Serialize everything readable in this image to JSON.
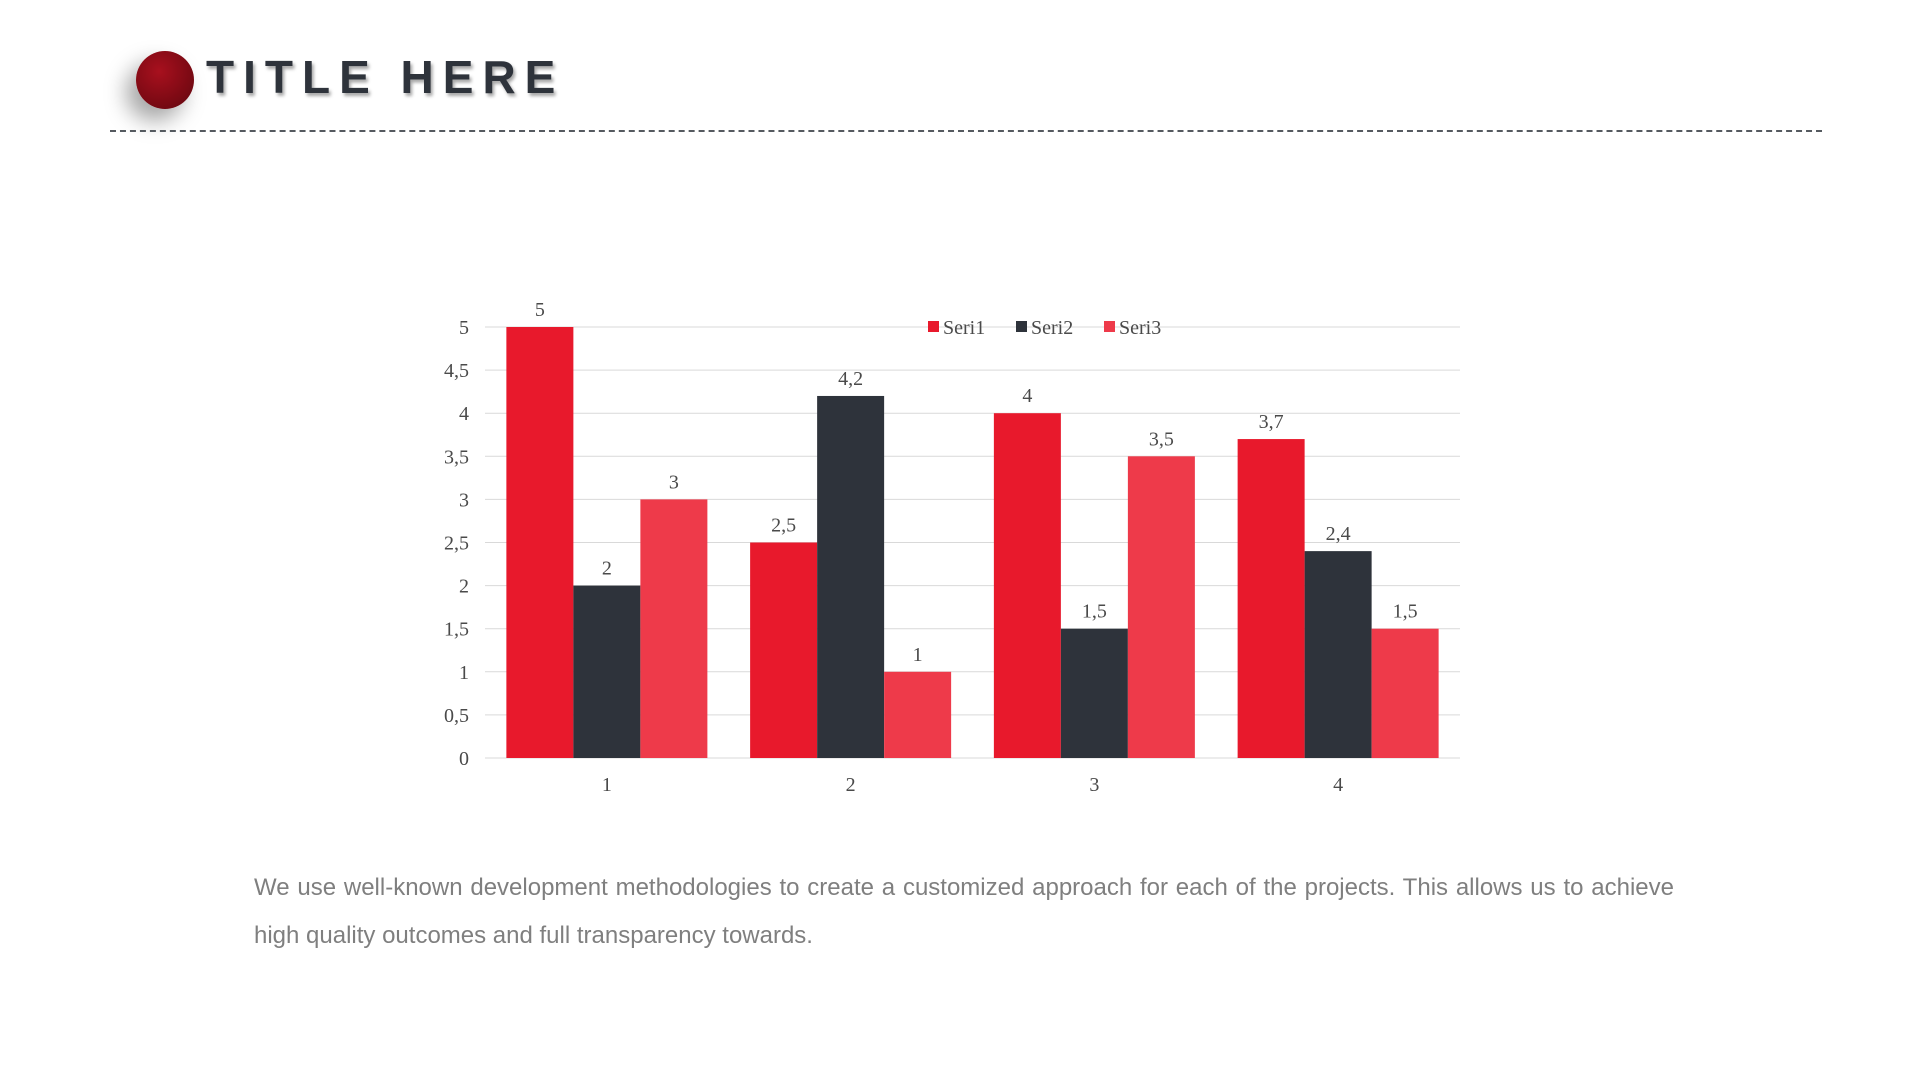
{
  "slide": {
    "title": "TITLE HERE",
    "body": "We use well-known development methodologies to create a customized approach for each of the projects. This allows us to achieve high quality outcomes and full transparency towards."
  },
  "colors": {
    "seri1": "#E8192C",
    "seri2": "#2E333B",
    "seri3": "#EE3A4A",
    "title_dot": "#7D0A14",
    "title_text": "#2E333B",
    "body_text": "#7F7F7F",
    "gridline": "#D9D9D9"
  },
  "chart_data": {
    "type": "bar",
    "categories": [
      "1",
      "2",
      "3",
      "4"
    ],
    "series": [
      {
        "name": "Seri1",
        "values": [
          5,
          2.5,
          4,
          3.7
        ]
      },
      {
        "name": "Seri2",
        "values": [
          2,
          4.2,
          1.5,
          2.4
        ]
      },
      {
        "name": "Seri3",
        "values": [
          3,
          1,
          3.5,
          1.5
        ]
      }
    ],
    "data_labels": [
      [
        "5",
        "2,5",
        "4",
        "3,7"
      ],
      [
        "2",
        "4,2",
        "1,5",
        "2,4"
      ],
      [
        "3",
        "1",
        "3,5",
        "1,5"
      ]
    ],
    "yticks": [
      0,
      0.5,
      1,
      1.5,
      2,
      2.5,
      3,
      3.5,
      4,
      4.5,
      5
    ],
    "ytick_labels": [
      "0",
      "0,5",
      "1",
      "1,5",
      "2",
      "2,5",
      "3",
      "3,5",
      "4",
      "4,5",
      "5"
    ],
    "ylim": [
      0,
      5
    ],
    "title": "",
    "xlabel": "",
    "ylabel": "",
    "grid": true,
    "legend": "top-center"
  }
}
